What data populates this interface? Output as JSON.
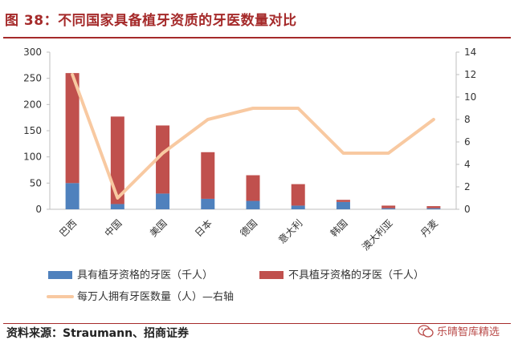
{
  "header": {
    "title": "图 38：不同国家具备植牙资质的牙医数量对比"
  },
  "source": "资料来源：Straumann、招商证券",
  "watermark": "乐晴智库精选",
  "colors": {
    "implant": "#4f81bd",
    "non_implant": "#c0504d",
    "line": "#f8c9a1",
    "accent": "#a52a2a"
  },
  "chart_data": {
    "type": "bar",
    "stacked": true,
    "categories": [
      "巴西",
      "中国",
      "美国",
      "日本",
      "德国",
      "意大利",
      "韩国",
      "澳大利亚",
      "丹麦"
    ],
    "series": [
      {
        "name": "具有植牙资格的牙医（千人）",
        "axis": "left",
        "type": "bar",
        "values": [
          50,
          10,
          30,
          20,
          16,
          7,
          14,
          2,
          2
        ]
      },
      {
        "name": "不具植牙资格的牙医（千人）",
        "axis": "left",
        "type": "bar",
        "values": [
          210,
          167,
          130,
          89,
          49,
          41,
          4,
          5,
          4
        ]
      },
      {
        "name": "每万人拥有牙医数量（人）—右轴",
        "axis": "right",
        "type": "line",
        "values": [
          12,
          1,
          5,
          8,
          9,
          9,
          5,
          5,
          8
        ]
      }
    ],
    "y_left": {
      "min": 0,
      "max": 300,
      "ticks": [
        0,
        50,
        100,
        150,
        200,
        250,
        300
      ]
    },
    "y_right": {
      "min": 0,
      "max": 14,
      "ticks": [
        0,
        2,
        4,
        6,
        8,
        10,
        12,
        14
      ]
    },
    "grid": false,
    "legend_position": "bottom"
  }
}
